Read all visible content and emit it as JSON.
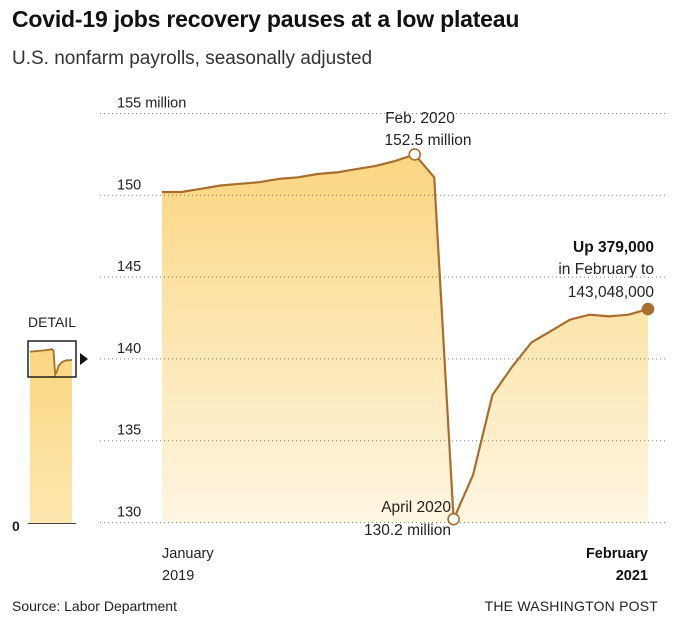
{
  "title": "Covid-19 jobs recovery pauses at a low plateau",
  "subtitle": "U.S. nonfarm payrolls, seasonally adjusted",
  "source": "Source: Labor Department",
  "credit": "THE WASHINGTON POST",
  "colors": {
    "area_top": "#fbd681",
    "area_bottom": "#fef6e2",
    "line": "#a86e2d",
    "end_dot": "#a86e2d",
    "marker_fill": "#ffffff",
    "gridline": "#222222"
  },
  "detail": {
    "label": "DETAIL",
    "zero_label": "0",
    "arrow_icon": "triangle-right-icon"
  },
  "annotations": {
    "peak_line1": "Feb. 2020",
    "peak_line2": "152.5 million",
    "trough_line1": "April 2020",
    "trough_line2": "130.2 million",
    "end_line1": "Up 379,000",
    "end_line2": "in February to",
    "end_line3": "143,048,000"
  },
  "x_labels": {
    "start_line1": "January",
    "start_line2": "2019",
    "end_line1": "February",
    "end_line2": "2021"
  },
  "chart_data": {
    "type": "area",
    "title": "Covid-19 jobs recovery pauses at a low plateau",
    "subtitle": "U.S. nonfarm payrolls, seasonally adjusted",
    "xlabel": "",
    "ylabel": "",
    "ylim": [
      130,
      155
    ],
    "y_ticks": [
      {
        "value": 155,
        "label": "155 million"
      },
      {
        "value": 150,
        "label": "150"
      },
      {
        "value": 145,
        "label": "145"
      },
      {
        "value": 140,
        "label": "140"
      },
      {
        "value": 135,
        "label": "135"
      },
      {
        "value": 130,
        "label": "130"
      }
    ],
    "grid": true,
    "x": [
      "2019-01",
      "2019-02",
      "2019-03",
      "2019-04",
      "2019-05",
      "2019-06",
      "2019-07",
      "2019-08",
      "2019-09",
      "2019-10",
      "2019-11",
      "2019-12",
      "2020-01",
      "2020-02",
      "2020-03",
      "2020-04",
      "2020-05",
      "2020-06",
      "2020-07",
      "2020-08",
      "2020-09",
      "2020-10",
      "2020-11",
      "2020-12",
      "2021-01",
      "2021-02"
    ],
    "series": [
      {
        "values": [
          150.2,
          150.2,
          150.4,
          150.6,
          150.7,
          150.8,
          151.0,
          151.1,
          151.3,
          151.4,
          151.6,
          151.8,
          152.1,
          152.5,
          151.1,
          130.2,
          132.9,
          137.8,
          139.5,
          141.0,
          141.7,
          142.4,
          142.7,
          142.6,
          142.7,
          143.048
        ]
      }
    ],
    "highlights": [
      {
        "x": "2020-02",
        "y": 152.5,
        "marker": "open-circle"
      },
      {
        "x": "2020-04",
        "y": 130.2,
        "marker": "open-circle"
      },
      {
        "x": "2021-02",
        "y": 143.048,
        "marker": "filled-circle"
      }
    ]
  }
}
